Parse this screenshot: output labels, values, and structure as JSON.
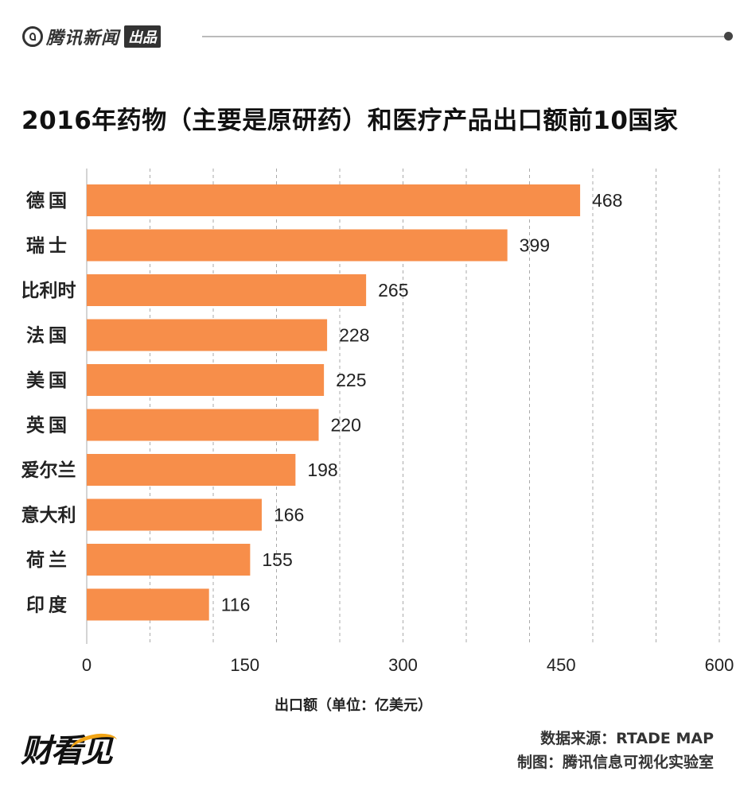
{
  "header": {
    "brand_name": "腾讯新闻",
    "brand_tag": "出品"
  },
  "title": "2016年药物（主要是原研药）和医疗产品出口额前10国家",
  "colors": {
    "bar": "#f78e4a",
    "grid": "#aaaaaa"
  },
  "chart_data": {
    "type": "bar",
    "orientation": "horizontal",
    "title": "2016年药物（主要是原研药）和医疗产品出口额前10国家",
    "categories": [
      "德国",
      "瑞士",
      "比利时",
      "法国",
      "美国",
      "英国",
      "爱尔兰",
      "意大利",
      "荷兰",
      "印度"
    ],
    "values": [
      468,
      399,
      265,
      228,
      225,
      220,
      198,
      166,
      155,
      116
    ],
    "xlabel": "出口额（单位：亿美元）",
    "ylabel": "",
    "xlim": [
      0,
      600
    ],
    "ticks": [
      0,
      150,
      300,
      450,
      600
    ],
    "grid": true
  },
  "footer": {
    "logo_text": "财看见",
    "source": "数据来源：RTADE MAP",
    "credit": "制图：腾讯信息可视化实验室"
  }
}
